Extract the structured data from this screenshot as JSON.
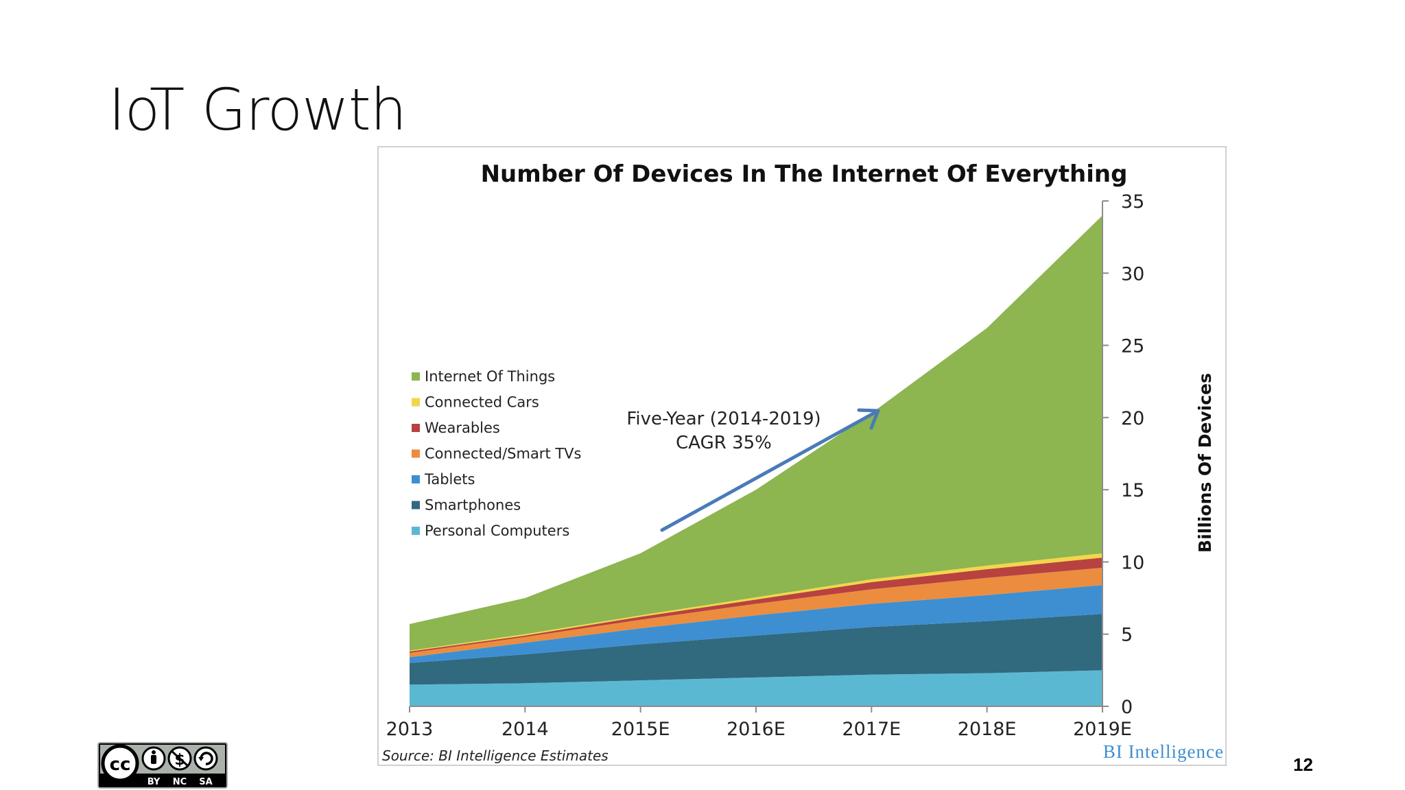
{
  "slide": {
    "title": "IoT Growth",
    "page_number": "12",
    "license_labels": [
      "BY",
      "NC",
      "SA"
    ]
  },
  "chart_data": {
    "type": "area",
    "stacked": true,
    "title": "Number Of Devices In The Internet Of Everything",
    "categories": [
      "2013",
      "2014",
      "2015E",
      "2016E",
      "2017E",
      "2018E",
      "2019E"
    ],
    "ylabel": "Billions Of Devices",
    "ylim": [
      0,
      35
    ],
    "yticks": [
      "0",
      "5",
      "10",
      "15",
      "20",
      "25",
      "30",
      "35"
    ],
    "y_axis_position": "right",
    "grid": false,
    "legend_position": "left",
    "legend_order": [
      "Internet Of Things",
      "Connected Cars",
      "Wearables",
      "Connected/Smart TVs",
      "Tablets",
      "Smartphones",
      "Personal Computers"
    ],
    "series": [
      {
        "name": "Personal Computers",
        "color": "#5bb8d3",
        "values": [
          1.5,
          1.6,
          1.8,
          2.0,
          2.2,
          2.3,
          2.5
        ]
      },
      {
        "name": "Smartphones",
        "color": "#31697e",
        "values": [
          1.5,
          2.0,
          2.5,
          2.9,
          3.3,
          3.6,
          3.9
        ]
      },
      {
        "name": "Tablets",
        "color": "#3d8fd2",
        "values": [
          0.4,
          0.8,
          1.1,
          1.4,
          1.6,
          1.8,
          2.0
        ]
      },
      {
        "name": "Connected/Smart TVs",
        "color": "#ec8c3f",
        "values": [
          0.3,
          0.4,
          0.6,
          0.8,
          1.0,
          1.2,
          1.2
        ]
      },
      {
        "name": "Wearables",
        "color": "#b7423f",
        "values": [
          0.1,
          0.1,
          0.2,
          0.3,
          0.5,
          0.6,
          0.7
        ]
      },
      {
        "name": "Connected Cars",
        "color": "#f2d64a",
        "values": [
          0.05,
          0.1,
          0.1,
          0.15,
          0.2,
          0.25,
          0.3
        ]
      },
      {
        "name": "Internet Of Things",
        "color": "#8db550",
        "values": [
          1.85,
          2.5,
          4.3,
          7.45,
          11.5,
          16.45,
          23.4
        ]
      }
    ],
    "annotation": {
      "lines": [
        "Five-Year (2014-2019)",
        "CAGR 35%"
      ],
      "arrow_color": "#4a7ab8"
    },
    "source": "Source: BI Intelligence Estimates",
    "brand": "BI Intelligence"
  }
}
